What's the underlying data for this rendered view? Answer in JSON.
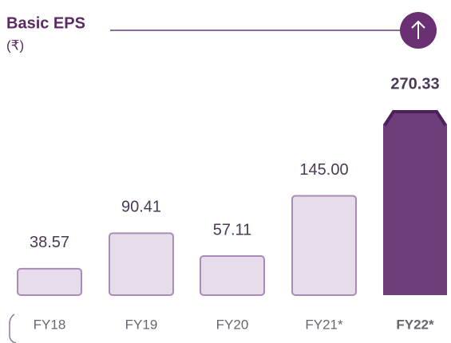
{
  "chart_data": {
    "type": "bar",
    "title": "Basic EPS",
    "subtitle": "(₹)",
    "categories": [
      "FY18",
      "FY19",
      "FY20",
      "FY21*",
      "FY22*"
    ],
    "values": [
      38.57,
      90.41,
      57.11,
      145,
      270.33
    ],
    "value_labels": [
      "38.57",
      "90.41",
      "57.11",
      "145.00",
      "270.33"
    ],
    "colors": [
      "#e6dcea",
      "#e6dcea",
      "#e6dcea",
      "#e6dcea",
      "#6e3e7a"
    ]
  }
}
